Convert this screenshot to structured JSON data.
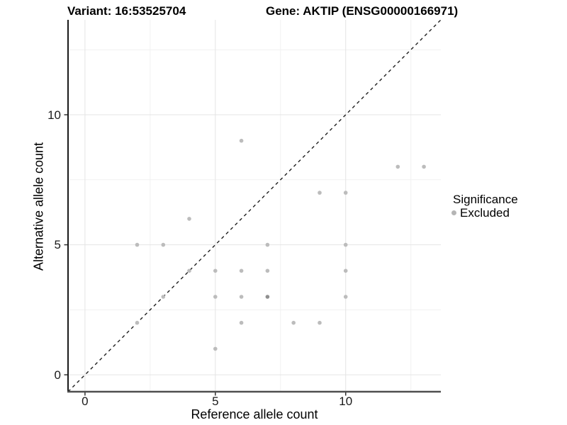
{
  "header": {
    "variant_title": "Variant: 16:53525704",
    "gene_title": "Gene: AKTIP (ENSG00000166971)"
  },
  "chart_data": {
    "type": "scatter",
    "xlabel": "Reference allele count",
    "ylabel": "Alternative allele count",
    "xlim": [
      -0.65,
      13.65
    ],
    "ylim": [
      -0.65,
      13.65
    ],
    "x_major_ticks": [
      0,
      5,
      10
    ],
    "y_major_ticks": [
      0,
      5,
      10
    ],
    "x_minor_ticks": [
      2.5,
      7.5,
      12.5
    ],
    "y_minor_ticks": [
      2.5,
      7.5,
      12.5
    ],
    "grid": "major and minor, light gray on white panel",
    "identity_line": {
      "type": "dashed",
      "equation": "y = x"
    },
    "series": [
      {
        "name": "Excluded",
        "points": [
          [
            2,
            2
          ],
          [
            2,
            5
          ],
          [
            3,
            3
          ],
          [
            3,
            5
          ],
          [
            4,
            4
          ],
          [
            4,
            6
          ],
          [
            5,
            1
          ],
          [
            5,
            3
          ],
          [
            5,
            4
          ],
          [
            6,
            2
          ],
          [
            6,
            3
          ],
          [
            6,
            4
          ],
          [
            6,
            9
          ],
          [
            7,
            3
          ],
          [
            7,
            4
          ],
          [
            7,
            5
          ],
          [
            8,
            2
          ],
          [
            9,
            2
          ],
          [
            9,
            7
          ],
          [
            10,
            3
          ],
          [
            10,
            4
          ],
          [
            10,
            5
          ],
          [
            10,
            7
          ],
          [
            12,
            8
          ],
          [
            13,
            8
          ]
        ],
        "overplotted_points": [
          [
            7,
            3
          ]
        ]
      }
    ],
    "legend": {
      "position": "right",
      "title": "Significance",
      "items": [
        {
          "label": "Excluded",
          "color": "#b5b5b5"
        }
      ]
    },
    "colors": {
      "point": "#bcbcbc",
      "point_overplotted": "#8f8f8f",
      "grid_major": "#e4e4e4",
      "grid_minor": "#f1f1f1",
      "axis_line_left": "#1a1a1a",
      "axis_line_bottom": "#4f4f4f",
      "identity_line": "#1f1f1f",
      "tick_mark": "#333333"
    }
  }
}
